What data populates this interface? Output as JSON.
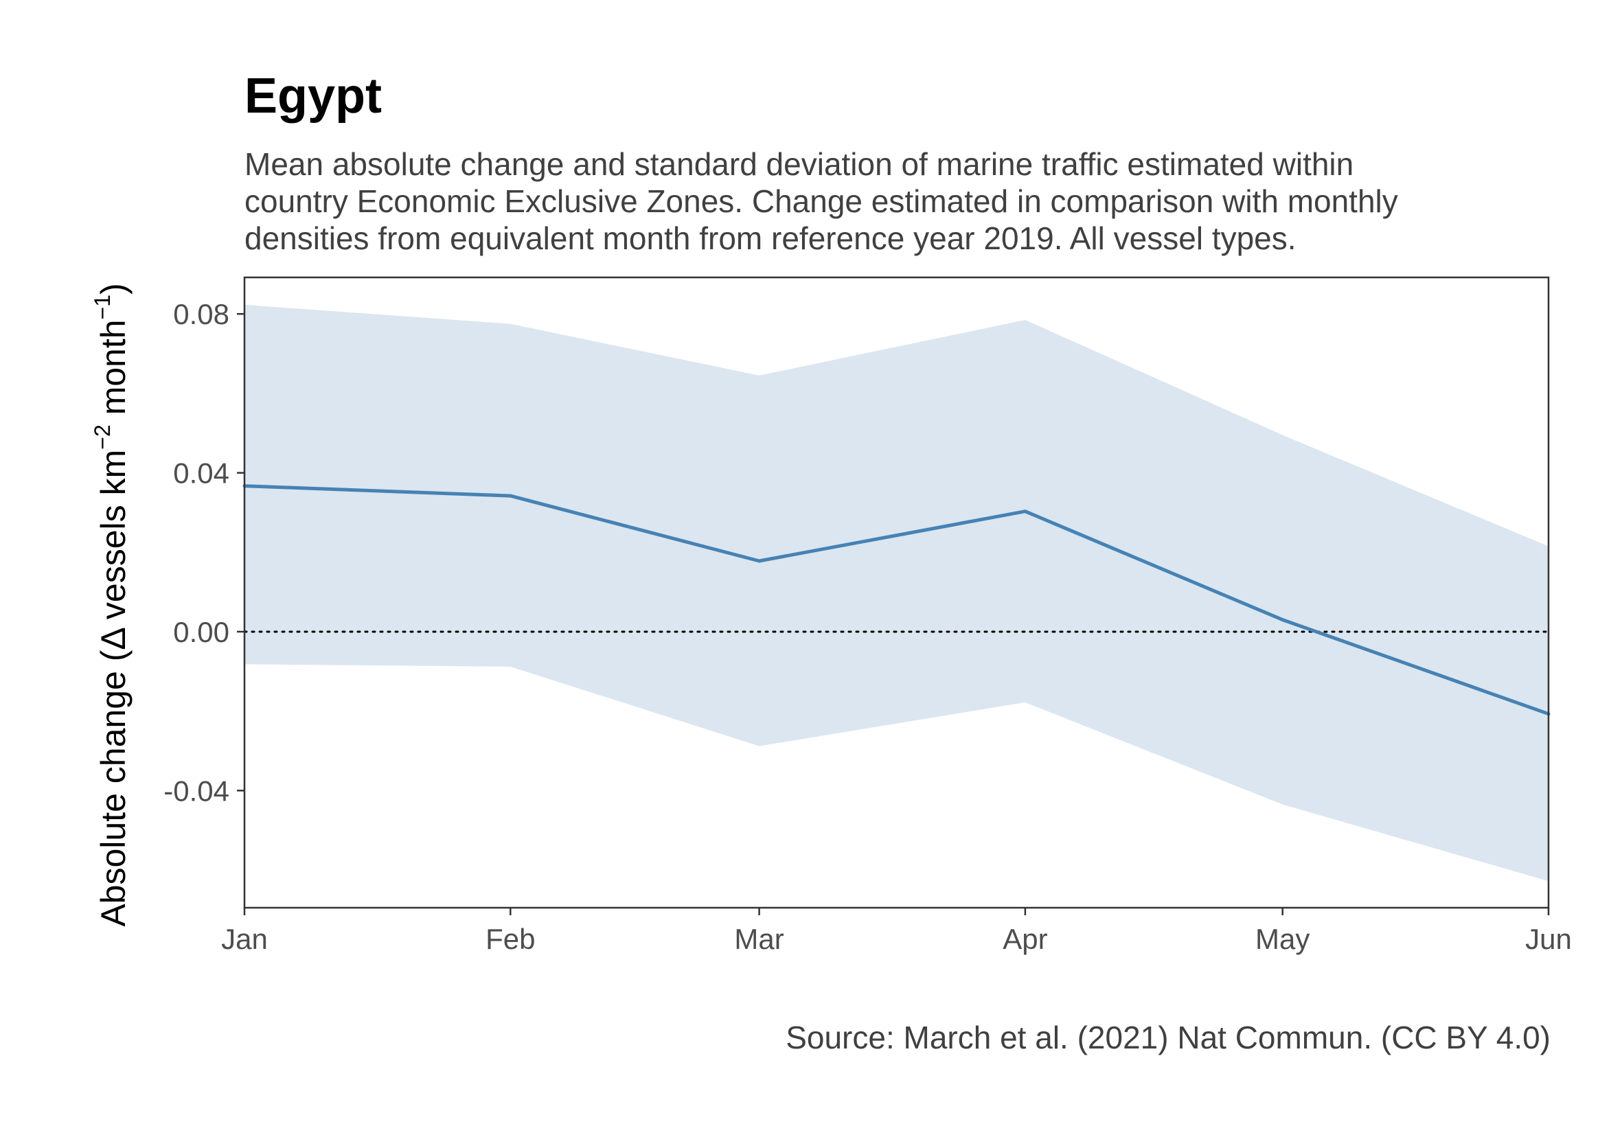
{
  "title": "Egypt",
  "subtitle": [
    "Mean absolute change and standard deviation of marine traffic estimated within",
    "country Economic Exclusive Zones. Change estimated in comparison with monthly",
    "densities from equivalent month from reference year 2019. All vessel types."
  ],
  "caption": "Source: March et al. (2021) Nat Commun. (CC BY 4.0)",
  "colors": {
    "line": "#4682b4",
    "band": "#dbe6f0",
    "axis": "#333333",
    "tick_text": "#4d4d4d",
    "zero_line": "#000000"
  },
  "chart_data": {
    "type": "line",
    "title": "Egypt",
    "xlabel": "",
    "ylabel": {
      "prefix": "Absolute change (",
      "delta": "Δ",
      "text": " vessels km",
      "exp1": "−2",
      "mid": " month",
      "exp2": "−1",
      "suffix": ")"
    },
    "categories": [
      "Jan",
      "Feb",
      "Mar",
      "Apr",
      "May",
      "Jun"
    ],
    "x_days": [
      0,
      31,
      60,
      91,
      121,
      152
    ],
    "series": [
      {
        "mean": [
          0.0367,
          0.0342,
          0.0178,
          0.0303,
          0.003,
          -0.0207
        ],
        "upper": [
          0.0823,
          0.0775,
          0.0645,
          0.0785,
          0.0495,
          0.0215
        ],
        "lower": [
          -0.0082,
          -0.0088,
          -0.0288,
          -0.0178,
          -0.0435,
          -0.0628
        ]
      }
    ],
    "yticks": [
      0.08,
      0.04,
      0.0,
      -0.04
    ],
    "ytick_labels": [
      "0.08",
      "0.04",
      "0.00",
      "-0.04"
    ],
    "ylim": [
      -0.0695,
      0.0892
    ],
    "reference_line": 0,
    "grid": false,
    "legend": "none"
  }
}
